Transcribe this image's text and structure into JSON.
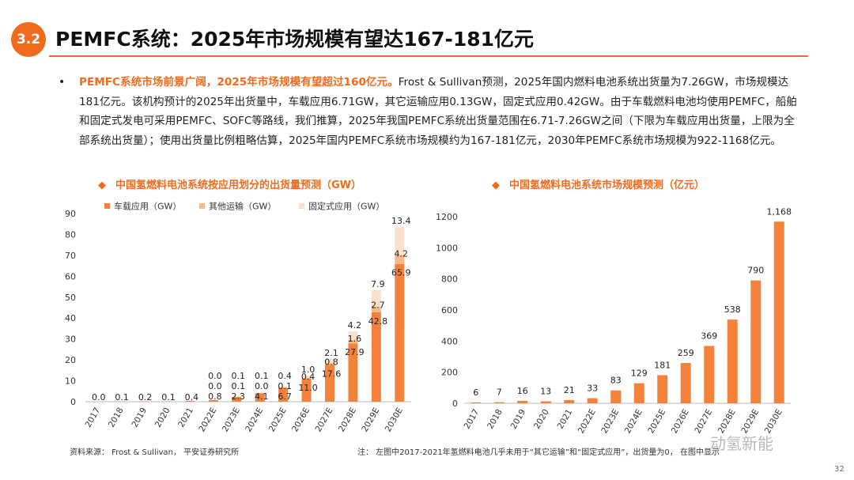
{
  "header": {
    "section": "3.2",
    "title": "PEMFC系统：2025年市场规模有望达167-181亿元"
  },
  "paragraph": {
    "highlight": "PEMFC系统市场前景广阔，2025年市场规模有望超过160亿元。",
    "body": "Frost & Sullivan预测，2025年国内燃料电池系统出货量为7.26GW，市场规模达181亿元。该机构预计的2025年出货量中，车载应用6.71GW，其它运输应用0.13GW，固定式应用0.42GW。由于车载燃料电池均使用PEMFC，船舶和固定式发电可采用PEMFC、SOFC等路线，我们推算，2025年我国PEMFC系统出货量范围在6.71-7.26GW之间（下限为车载应用出货量，上限为全部系统出货量）；使用出货量比例粗略估算，2025年国内PEMFC系统市场规模约为167-181亿元，2030年PEMFC系统市场规模为922-1168亿元。"
  },
  "charts_titles": {
    "left": "中国氢燃料电池系统按应用划分的出货量预测（GW）",
    "right": "中国氢燃料电池系统市场规模预测（亿元）"
  },
  "footer": {
    "source": "资料来源： Frost & Sullivan， 平安证券研究所",
    "note": "注： 左图中2017-2021年氢燃料电池几乎未用于“其它运输”和“固定式应用”，出货量为0， 在图中显示",
    "watermark": "动氢新能",
    "page": "32"
  },
  "chart_data": [
    {
      "type": "bar",
      "stacked": true,
      "categories": [
        "2017",
        "2018",
        "2019",
        "2020",
        "2021",
        "2022E",
        "2023E",
        "2024E",
        "2025E",
        "2026E",
        "2027E",
        "2028E",
        "2029E",
        "2030E"
      ],
      "series": [
        {
          "name": "车载应用（GW）",
          "color": "#f5823a",
          "values": [
            0.0,
            0.1,
            0.2,
            0.1,
            0.4,
            0.8,
            2.3,
            4.1,
            6.7,
            11.0,
            17.6,
            27.9,
            42.8,
            65.9
          ]
        },
        {
          "name": "其他运输（GW）",
          "color": "#f7b98a",
          "values": [
            0,
            0,
            0,
            0,
            0,
            0.0,
            0.1,
            0.0,
            0.1,
            0.4,
            0.8,
            1.6,
            2.7,
            4.2
          ]
        },
        {
          "name": "固定式应用（GW）",
          "color": "#fbe0cc",
          "values": [
            0,
            0,
            0,
            0,
            0,
            0.0,
            0.1,
            0.1,
            0.4,
            1.0,
            2.1,
            4.2,
            7.9,
            13.4
          ]
        }
      ],
      "labels_shown": [
        [
          "0.0",
          "0.1",
          "0.2",
          "0.1",
          "0.4",
          "0.8",
          "2.3",
          "4.1",
          "6.7",
          "11.0",
          "17.6",
          "27.9",
          "42.8",
          "65.9"
        ],
        [
          null,
          null,
          null,
          null,
          null,
          "0.0",
          "0.1",
          "0.0",
          "0.1",
          "0.4",
          "0.8",
          "1.6",
          "2.7",
          "4.2"
        ],
        [
          null,
          null,
          null,
          null,
          null,
          "0.0",
          "0.1",
          "0.1",
          "0.4",
          "1.0",
          "2.1",
          "4.2",
          "7.9",
          "13.4"
        ]
      ],
      "ylim": [
        0,
        90
      ],
      "yticks": [
        "0",
        "10",
        "20",
        "30",
        "40",
        "50",
        "60",
        "70",
        "80",
        "90"
      ],
      "legend": "top"
    },
    {
      "type": "bar",
      "categories": [
        "2017",
        "2018",
        "2019",
        "2020",
        "2021",
        "2022E",
        "2023E",
        "2024E",
        "2025E",
        "2026E",
        "2027E",
        "2028E",
        "2029E",
        "2030E"
      ],
      "values": [
        6,
        7,
        16,
        13,
        21,
        33,
        83,
        129,
        181,
        259,
        369,
        538,
        790,
        1168
      ],
      "labels": [
        "6",
        "7",
        "16",
        "13",
        "21",
        "33",
        "83",
        "129",
        "181",
        "259",
        "369",
        "538",
        "790",
        "1,168"
      ],
      "color": "#f5823a",
      "ylim": [
        0,
        1200
      ],
      "yticks": [
        "0",
        "200",
        "400",
        "600",
        "800",
        "1000",
        "1200"
      ]
    }
  ]
}
